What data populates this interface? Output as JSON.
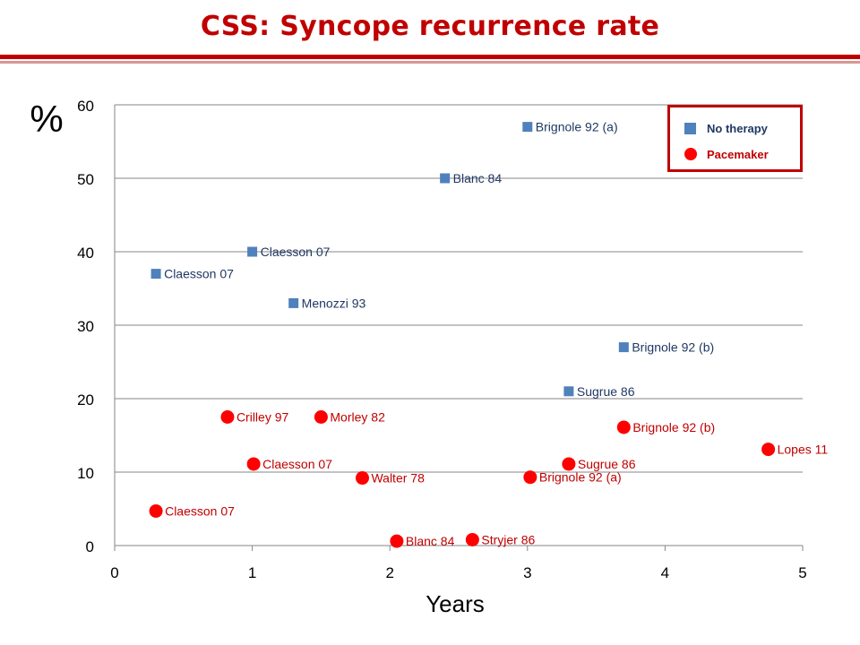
{
  "title": "CSS: Syncope  recurrence rate",
  "colors": {
    "title": "#c00000",
    "no_therapy": "#4f81bd",
    "pacemaker": "#ff0000",
    "pacemaker_label": "#c00000"
  },
  "chart_data": {
    "type": "scatter",
    "title": "CSS: Syncope  recurrence rate",
    "xlabel": "Years",
    "ylabel": "%",
    "xlim": [
      0,
      5
    ],
    "ylim": [
      0,
      60
    ],
    "x_ticks": [
      "0",
      "1",
      "2",
      "3",
      "4",
      "5"
    ],
    "y_ticks": [
      "0",
      "10",
      "20",
      "30",
      "40",
      "50",
      "60"
    ],
    "grid": "horizontal",
    "legend": "top-right",
    "series": [
      {
        "name": "No therapy",
        "marker": "square",
        "points": [
          {
            "x": 0.3,
            "y": 37,
            "label": "Claesson 07"
          },
          {
            "x": 1.0,
            "y": 40,
            "label": "Claesson 07"
          },
          {
            "x": 1.3,
            "y": 33,
            "label": "Menozzi 93"
          },
          {
            "x": 2.4,
            "y": 50,
            "label": "Blanc 84"
          },
          {
            "x": 3.0,
            "y": 57,
            "label": "Brignole 92 (a)"
          },
          {
            "x": 3.3,
            "y": 21,
            "label": "Sugrue 86"
          },
          {
            "x": 3.7,
            "y": 27,
            "label": "Brignole 92 (b)"
          }
        ]
      },
      {
        "name": "Pacemaker",
        "marker": "circle",
        "points": [
          {
            "x": 0.3,
            "y": 4.7,
            "label": "Claesson 07"
          },
          {
            "x": 0.82,
            "y": 17.5,
            "label": "Crilley 97"
          },
          {
            "x": 1.01,
            "y": 11.1,
            "label": "Claesson 07"
          },
          {
            "x": 1.5,
            "y": 17.5,
            "label": "Morley 82"
          },
          {
            "x": 1.8,
            "y": 9.2,
            "label": "Walter 78"
          },
          {
            "x": 2.05,
            "y": 0.6,
            "label": "Blanc 84"
          },
          {
            "x": 2.6,
            "y": 0.8,
            "label": "Stryjer 86"
          },
          {
            "x": 3.02,
            "y": 9.3,
            "label": "Brignole 92 (a)"
          },
          {
            "x": 3.3,
            "y": 11.1,
            "label": "Sugrue 86"
          },
          {
            "x": 3.7,
            "y": 16.1,
            "label": "Brignole 92 (b)"
          },
          {
            "x": 4.75,
            "y": 13.1,
            "label": "Lopes 11"
          }
        ]
      }
    ]
  }
}
